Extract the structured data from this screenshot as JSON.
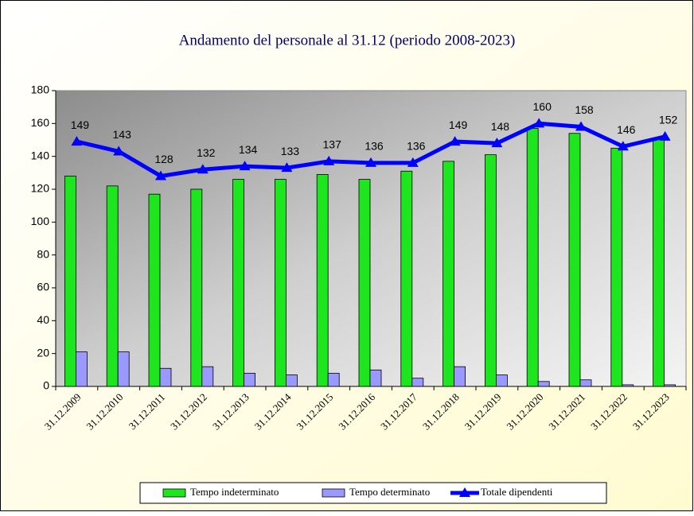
{
  "chart_data": {
    "type": "bar-line",
    "title": "Andamento del personale al 31.12 (periodo 2008-2023)",
    "categories": [
      "31.12.2009",
      "31.12.2010",
      "31.12.2011",
      "31.12.2012",
      "31.12.2013",
      "31.12.2014",
      "31.12.2015",
      "31.12.2016",
      "31.12.2017",
      "31.12.2018",
      "31.12.2019",
      "31.12.2020",
      "31.12.2021",
      "31.12.2022",
      "31.12.2023"
    ],
    "series": [
      {
        "name": "Tempo indeterminato",
        "type": "bar",
        "color": "#1ee61e",
        "values": [
          128,
          122,
          117,
          120,
          126,
          126,
          129,
          126,
          131,
          137,
          141,
          157,
          154,
          145,
          151
        ]
      },
      {
        "name": "Tempo determinato",
        "type": "bar",
        "color": "#9999ff",
        "values": [
          21,
          21,
          11,
          12,
          8,
          7,
          8,
          10,
          5,
          12,
          7,
          3,
          4,
          1,
          1
        ]
      },
      {
        "name": "Totale dipendenti",
        "type": "line",
        "color": "#0000ff",
        "values": [
          149,
          143,
          128,
          132,
          134,
          133,
          137,
          136,
          136,
          149,
          148,
          160,
          158,
          146,
          152
        ]
      }
    ],
    "ylim": [
      0,
      180
    ],
    "yticks": [
      0,
      20,
      40,
      60,
      80,
      100,
      120,
      140,
      160,
      180
    ],
    "grid": false,
    "legend": "bottom"
  }
}
